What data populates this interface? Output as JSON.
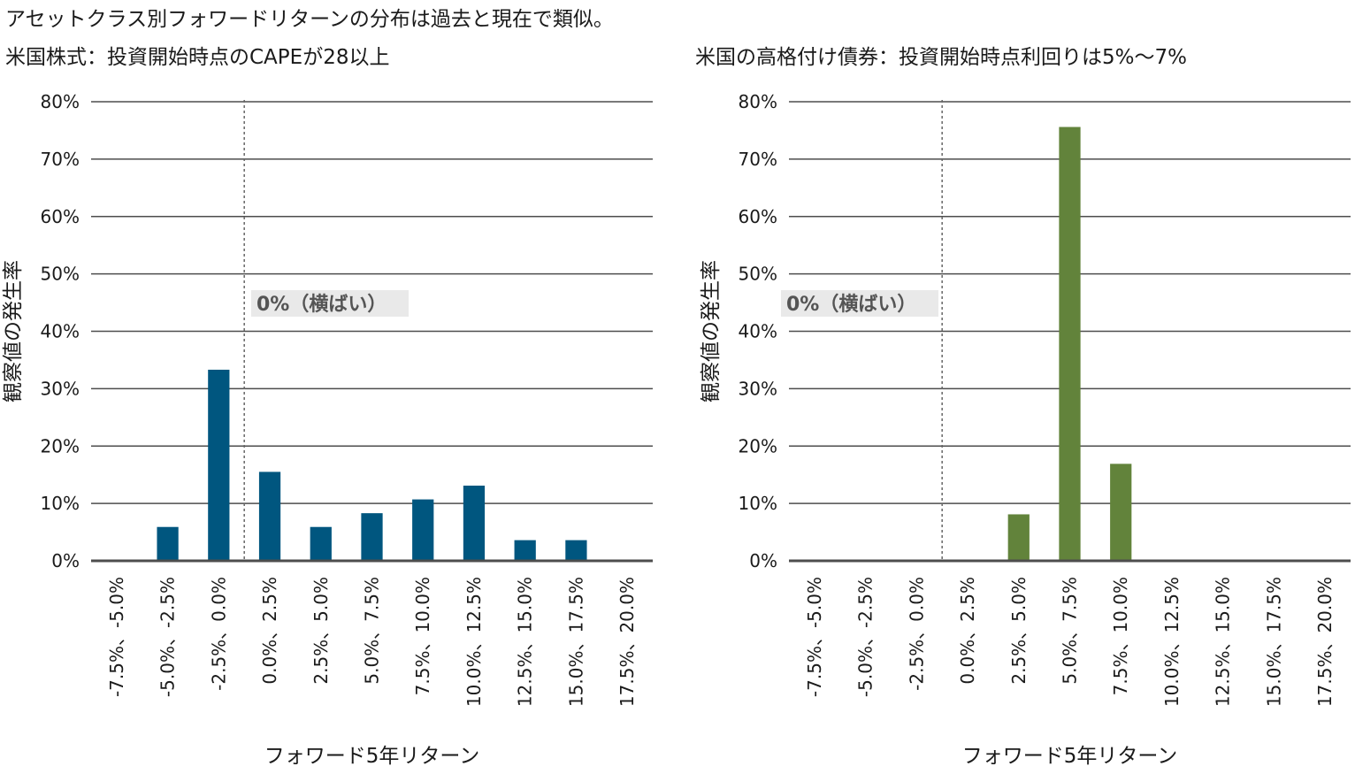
{
  "main_title": "アセットクラス別フォワードリターンの分布は過去と現在で類似。",
  "chart_data": [
    {
      "type": "bar",
      "title": "米国株式：投資開始時点のCAPEが28以上",
      "xlabel": "フォワード5年リターン",
      "ylabel": "観察値の発生率",
      "categories": [
        "-7.5%、-5.0%",
        "-5.0%、-2.5%",
        "-2.5%、0.0%",
        "0.0%、2.5%",
        "2.5%、5.0%",
        "5.0%、7.5%",
        "7.5%、10.0%",
        "10.0%、12.5%",
        "12.5%、15.0%",
        "15.0%、17.5%",
        "17.5%、20.0%"
      ],
      "values": [
        0,
        5.9,
        33.3,
        15.5,
        5.9,
        8.3,
        10.7,
        13.1,
        3.6,
        3.6,
        0
      ],
      "ylim": [
        0,
        80
      ],
      "yticks": [
        "0%",
        "10%",
        "20%",
        "30%",
        "40%",
        "50%",
        "60%",
        "70%",
        "80%"
      ],
      "grid": true,
      "color": "#00567f",
      "reference_line": {
        "x_boundary_index": 3,
        "label": "0%（横ばい）"
      }
    },
    {
      "type": "bar",
      "title": "米国の高格付け債券：投資開始時点利回りは5%～7%",
      "xlabel": "フォワード5年リターン",
      "ylabel": "観察値の発生率",
      "categories": [
        "-7.5%、-5.0%",
        "-5.0%、-2.5%",
        "-2.5%、0.0%",
        "0.0%、2.5%",
        "2.5%、5.0%",
        "5.0%、7.5%",
        "7.5%、10.0%",
        "10.0%、12.5%",
        "12.5%、15.0%",
        "15.0%、17.5%",
        "17.5%、20.0%"
      ],
      "values": [
        0,
        0,
        0,
        0,
        8.1,
        75.6,
        16.9,
        0,
        0,
        0,
        0
      ],
      "ylim": [
        0,
        80
      ],
      "yticks": [
        "0%",
        "10%",
        "20%",
        "30%",
        "40%",
        "50%",
        "60%",
        "70%",
        "80%"
      ],
      "grid": true,
      "color": "#62833b",
      "reference_line": {
        "x_boundary_index": 3,
        "label": "0%（横ばい）"
      }
    }
  ]
}
